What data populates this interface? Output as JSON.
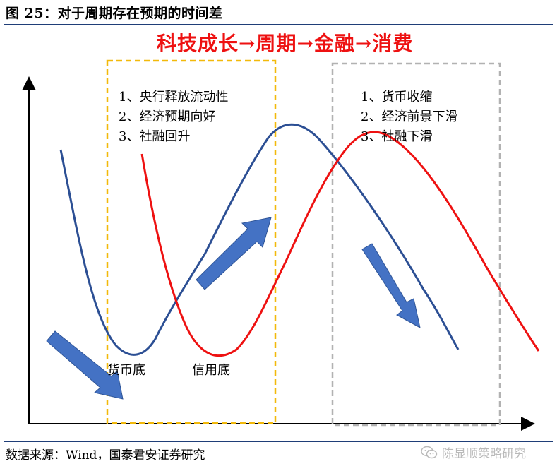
{
  "figure": {
    "title": "图 25：对于周期存在预期的时间差",
    "headline": "科技成长→周期→金融→消费"
  },
  "boxes": {
    "left": {
      "border_color": "#f2b90b",
      "items": [
        "1、央行释放流动性",
        "2、经济预期向好",
        "3、社融回升"
      ]
    },
    "right": {
      "border_color": "#b2b2b2",
      "items": [
        "1、货币收缩",
        "2、经济前景下滑",
        "3、社融下滑"
      ]
    }
  },
  "curves": {
    "blue": {
      "color": "#2c4f94",
      "label": "货币底"
    },
    "red": {
      "color": "#ee1111",
      "label": "信用底"
    }
  },
  "arrows_color": "#4472c4",
  "source": "数据来源：Wind，国泰君安证券研究",
  "watermark": "陈显顺策略研究"
}
